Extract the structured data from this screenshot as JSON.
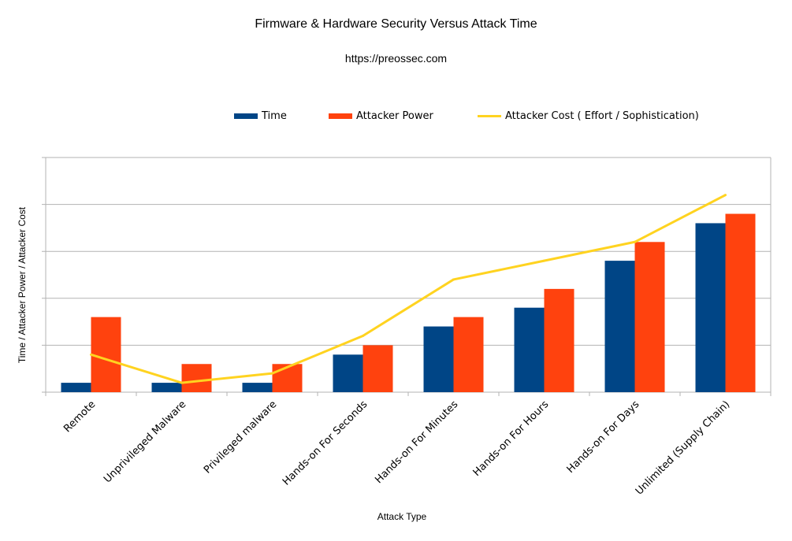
{
  "colors": {
    "time": "#004586",
    "power": "#ff420e",
    "cost": "#ffd320",
    "grid": "#b3b3b3"
  },
  "legend": {
    "time": "Time",
    "power": "Attacker Power",
    "cost": "Attacker Cost ( Effort / Sophistication)"
  },
  "chart_data": {
    "type": "bar",
    "title": "Firmware & Hardware Security Versus Attack Time",
    "subtitle": "https://preossec.com",
    "xlabel": "Attack Type",
    "ylabel": "Time / Attacker Power / Attacker Cost",
    "ylim": [
      0,
      25
    ],
    "categories": [
      "Remote",
      "Unprivileged Malware",
      "Privileged malware",
      "Hands-on For Seconds",
      "Hands-on For Minutes",
      "Hands-on For Hours",
      "Hands-on For Days",
      "Unlimited (Supply Chain)"
    ],
    "series": [
      {
        "name": "Time",
        "type": "bar",
        "values": [
          1,
          1,
          1,
          4,
          7,
          9,
          14,
          18
        ]
      },
      {
        "name": "Attacker Power",
        "type": "bar",
        "values": [
          8,
          3,
          3,
          5,
          8,
          11,
          16,
          19
        ]
      },
      {
        "name": "Attacker Cost ( Effort / Sophistication)",
        "type": "line",
        "values": [
          4,
          1,
          2,
          6,
          12,
          14,
          16,
          21
        ]
      }
    ]
  }
}
